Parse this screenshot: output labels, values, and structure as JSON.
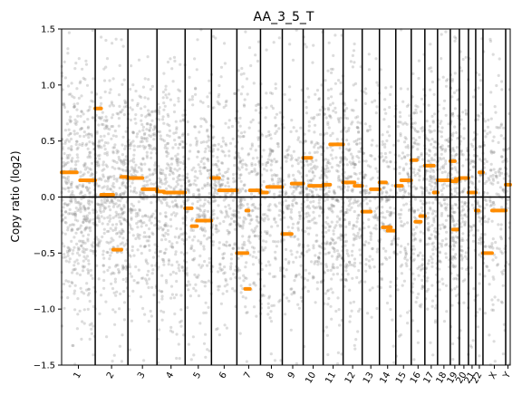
{
  "chart_data": {
    "type": "scatter",
    "title": "AA_3_5_T",
    "xlabel": "",
    "ylabel": "Copy ratio (log2)",
    "ylim": [
      -1.5,
      1.5
    ],
    "yticks": [
      -1.5,
      -1.0,
      -0.5,
      0.0,
      0.5,
      1.0,
      1.5
    ],
    "ytick_labels": [
      "−1.5",
      "−1.0",
      "−0.5",
      "0.0",
      "0.5",
      "1.0",
      "1.5"
    ],
    "chromosomes": [
      "1",
      "2",
      "3",
      "4",
      "5",
      "6",
      "7",
      "8",
      "9",
      "10",
      "11",
      "12",
      "13",
      "14",
      "15",
      "16",
      "17",
      "18",
      "19",
      "20",
      "21",
      "22",
      "X",
      "Y"
    ],
    "chromosome_widths": [
      37,
      36,
      32,
      31,
      29,
      28,
      26,
      24,
      23,
      22,
      22,
      21,
      19,
      18,
      17,
      15,
      14,
      14,
      10,
      10,
      8,
      8,
      25,
      5
    ],
    "reference_line_y": 0.0,
    "point_density": [
      0.9,
      0.8,
      0.7,
      0.7,
      0.6,
      0.6,
      0.6,
      0.5,
      0.5,
      0.6,
      0.8,
      0.7,
      0.4,
      0.5,
      0.5,
      0.7,
      0.8,
      0.6,
      1.0,
      0.6,
      0.5,
      0.6,
      0.5,
      0.3
    ],
    "point_color": "#808080",
    "segment_color": "#ff8c00",
    "segments": [
      {
        "chrom": "1",
        "start": 0.0,
        "end": 0.45,
        "value": 0.22
      },
      {
        "chrom": "1",
        "start": 0.55,
        "end": 1.0,
        "value": 0.15
      },
      {
        "chrom": "2",
        "start": 0.0,
        "end": 0.18,
        "value": 0.79
      },
      {
        "chrom": "2",
        "start": 0.18,
        "end": 0.55,
        "value": 0.02
      },
      {
        "chrom": "2",
        "start": 0.55,
        "end": 0.8,
        "value": -0.47
      },
      {
        "chrom": "2",
        "start": 0.8,
        "end": 1.0,
        "value": 0.18
      },
      {
        "chrom": "3",
        "start": 0.0,
        "end": 0.5,
        "value": 0.17
      },
      {
        "chrom": "3",
        "start": 0.5,
        "end": 1.0,
        "value": 0.07
      },
      {
        "chrom": "4",
        "start": 0.0,
        "end": 0.25,
        "value": 0.05
      },
      {
        "chrom": "4",
        "start": 0.25,
        "end": 1.0,
        "value": 0.04
      },
      {
        "chrom": "5",
        "start": 0.0,
        "end": 0.25,
        "value": -0.1
      },
      {
        "chrom": "5",
        "start": 0.25,
        "end": 0.45,
        "value": -0.26
      },
      {
        "chrom": "5",
        "start": 0.45,
        "end": 1.0,
        "value": -0.21
      },
      {
        "chrom": "6",
        "start": 0.0,
        "end": 0.3,
        "value": 0.17
      },
      {
        "chrom": "6",
        "start": 0.3,
        "end": 1.0,
        "value": 0.06
      },
      {
        "chrom": "7",
        "start": 0.0,
        "end": 0.45,
        "value": -0.5
      },
      {
        "chrom": "7",
        "start": 0.35,
        "end": 0.55,
        "value": -0.82
      },
      {
        "chrom": "7",
        "start": 0.4,
        "end": 0.5,
        "value": -0.12
      },
      {
        "chrom": "7",
        "start": 0.55,
        "end": 1.0,
        "value": 0.06
      },
      {
        "chrom": "8",
        "start": 0.0,
        "end": 0.3,
        "value": 0.04
      },
      {
        "chrom": "8",
        "start": 0.3,
        "end": 1.0,
        "value": 0.09
      },
      {
        "chrom": "9",
        "start": 0.0,
        "end": 0.45,
        "value": -0.33
      },
      {
        "chrom": "9",
        "start": 0.45,
        "end": 1.0,
        "value": 0.12
      },
      {
        "chrom": "10",
        "start": 0.0,
        "end": 0.4,
        "value": 0.35
      },
      {
        "chrom": "10",
        "start": 0.3,
        "end": 1.0,
        "value": 0.1
      },
      {
        "chrom": "11",
        "start": 0.0,
        "end": 0.35,
        "value": 0.11
      },
      {
        "chrom": "11",
        "start": 0.35,
        "end": 1.0,
        "value": 0.47
      },
      {
        "chrom": "12",
        "start": 0.0,
        "end": 0.6,
        "value": 0.13
      },
      {
        "chrom": "12",
        "start": 0.6,
        "end": 1.0,
        "value": 0.1
      },
      {
        "chrom": "13",
        "start": 0.0,
        "end": 0.5,
        "value": -0.13
      },
      {
        "chrom": "13",
        "start": 0.5,
        "end": 1.0,
        "value": 0.07
      },
      {
        "chrom": "14",
        "start": 0.0,
        "end": 0.4,
        "value": 0.13
      },
      {
        "chrom": "14",
        "start": 0.2,
        "end": 0.7,
        "value": -0.27
      },
      {
        "chrom": "14",
        "start": 0.5,
        "end": 0.9,
        "value": -0.3
      },
      {
        "chrom": "15",
        "start": 0.0,
        "end": 0.4,
        "value": 0.1
      },
      {
        "chrom": "15",
        "start": 0.35,
        "end": 1.0,
        "value": 0.15
      },
      {
        "chrom": "16",
        "start": 0.0,
        "end": 0.4,
        "value": 0.33
      },
      {
        "chrom": "16",
        "start": 0.3,
        "end": 0.7,
        "value": -0.22
      },
      {
        "chrom": "16",
        "start": 0.65,
        "end": 1.0,
        "value": -0.17
      },
      {
        "chrom": "17",
        "start": 0.0,
        "end": 0.7,
        "value": 0.28
      },
      {
        "chrom": "17",
        "start": 0.7,
        "end": 1.0,
        "value": 0.04
      },
      {
        "chrom": "18",
        "start": 0.0,
        "end": 1.0,
        "value": 0.15
      },
      {
        "chrom": "19",
        "start": 0.0,
        "end": 0.5,
        "value": 0.32
      },
      {
        "chrom": "19",
        "start": 0.2,
        "end": 0.7,
        "value": 0.14
      },
      {
        "chrom": "19",
        "start": 0.3,
        "end": 0.8,
        "value": -0.29
      },
      {
        "chrom": "19",
        "start": 0.6,
        "end": 1.0,
        "value": 0.16
      },
      {
        "chrom": "20",
        "start": 0.0,
        "end": 1.0,
        "value": 0.17
      },
      {
        "chrom": "21",
        "start": 0.0,
        "end": 1.0,
        "value": 0.04
      },
      {
        "chrom": "22",
        "start": 0.0,
        "end": 0.4,
        "value": -0.12
      },
      {
        "chrom": "22",
        "start": 0.5,
        "end": 1.0,
        "value": 0.22
      },
      {
        "chrom": "X",
        "start": 0.0,
        "end": 0.4,
        "value": -0.5
      },
      {
        "chrom": "X",
        "start": 0.4,
        "end": 1.0,
        "value": -0.12
      },
      {
        "chrom": "Y",
        "start": 0.0,
        "end": 1.0,
        "value": 0.11
      }
    ],
    "grid": false,
    "legend": "none"
  }
}
